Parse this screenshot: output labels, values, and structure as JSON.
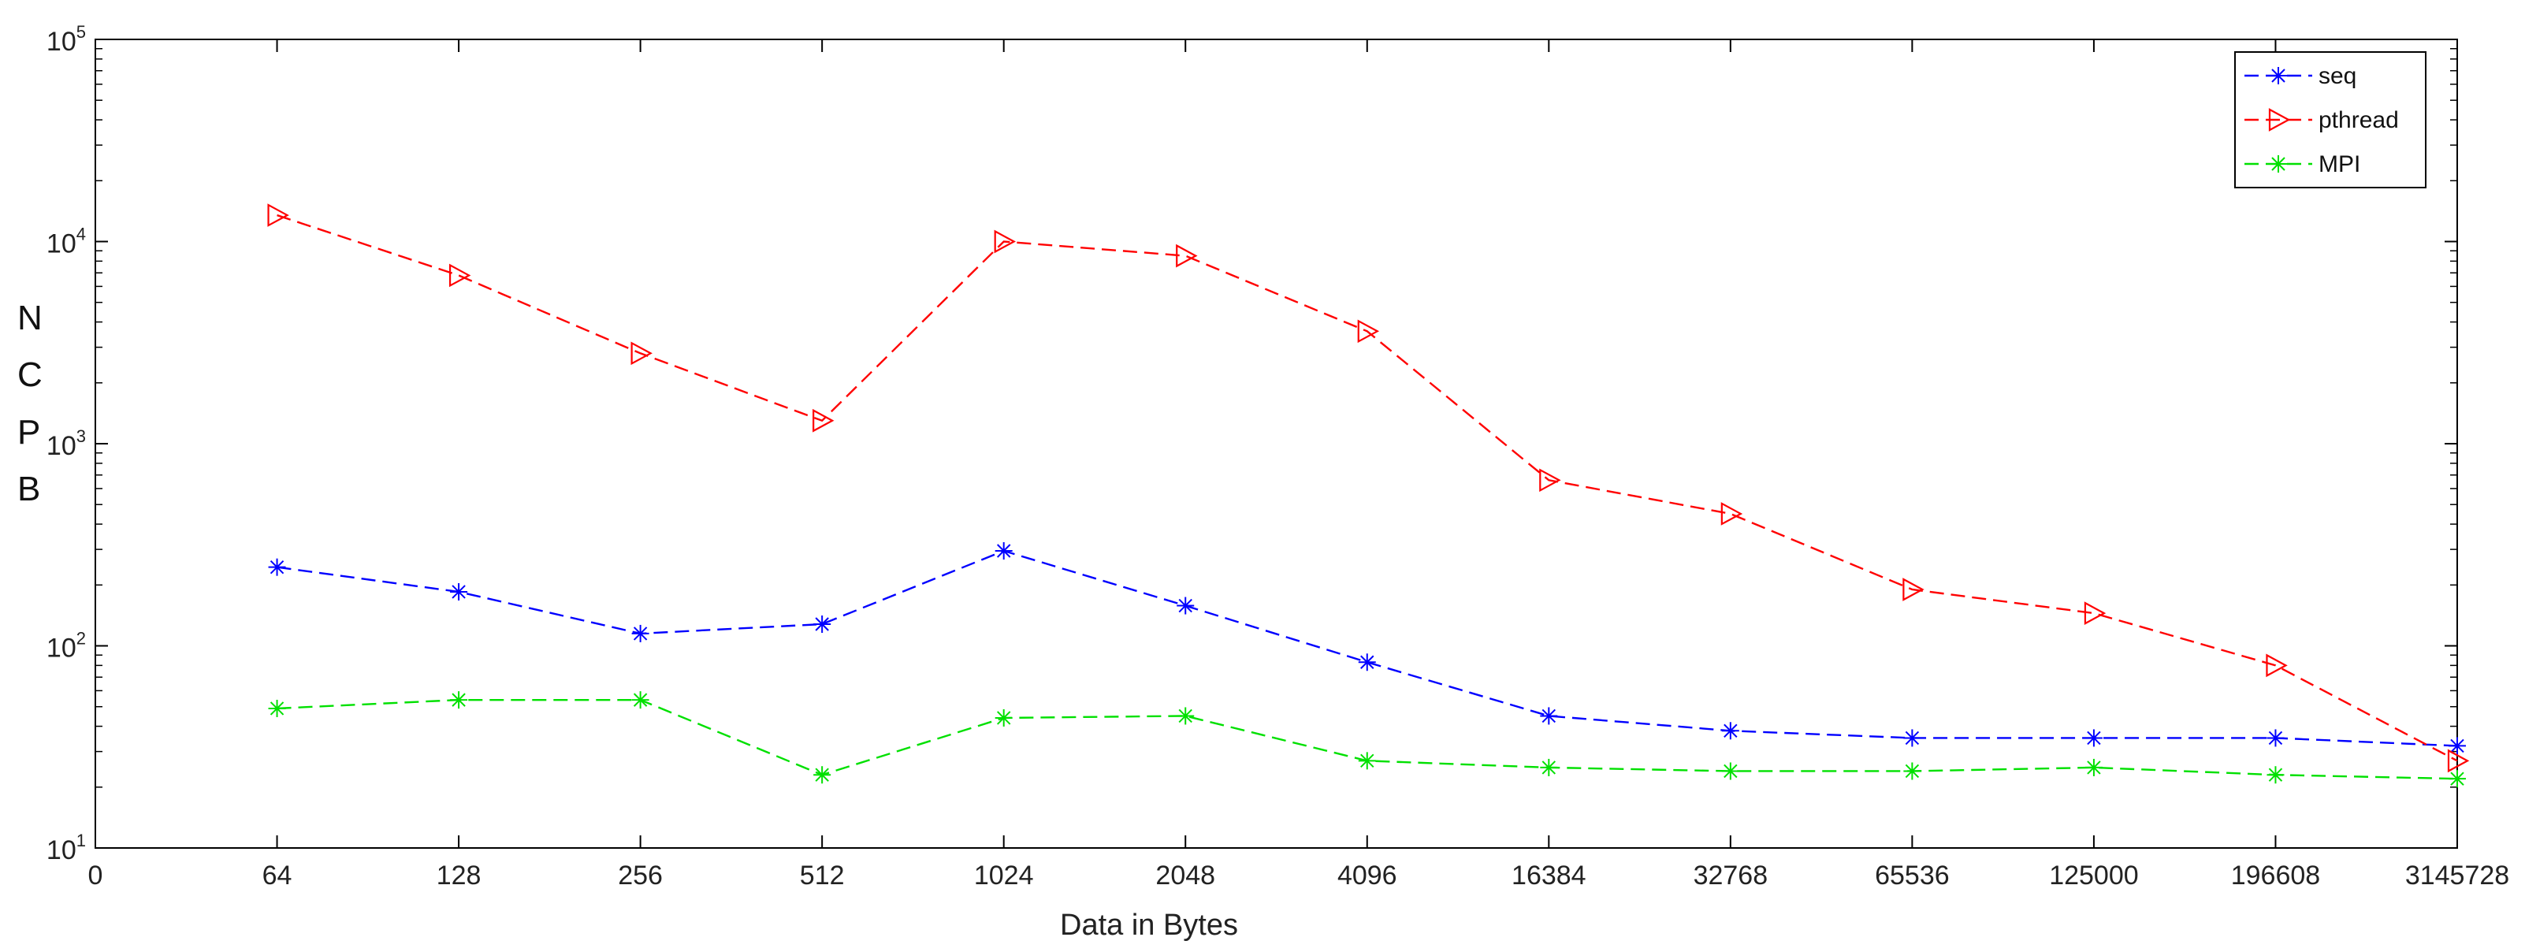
{
  "chart_data": {
    "type": "line",
    "xlabel": "Data in Bytes",
    "ylabel_letters": [
      "N",
      "C",
      "P",
      "B"
    ],
    "y_scale": "log",
    "ylim": [
      10,
      100000
    ],
    "y_ticks": [
      {
        "value": 10,
        "base": "10",
        "exp": "1"
      },
      {
        "value": 100,
        "base": "10",
        "exp": "2"
      },
      {
        "value": 1000,
        "base": "10",
        "exp": "3"
      },
      {
        "value": 10000,
        "base": "10",
        "exp": "4"
      },
      {
        "value": 100000,
        "base": "10",
        "exp": "5"
      }
    ],
    "x_tick_labels": [
      "0",
      "64",
      "128",
      "256",
      "512",
      "1024",
      "2048",
      "4096",
      "16384",
      "32768",
      "65536",
      "125000",
      "196608",
      "3145728"
    ],
    "categories": [
      "64",
      "128",
      "256",
      "512",
      "1024",
      "2048",
      "4096",
      "16384",
      "32768",
      "65536",
      "125000",
      "196608",
      "3145728"
    ],
    "series": [
      {
        "name": "seq",
        "color": "#0000ff",
        "marker": "asterisk",
        "values": [
          245,
          185,
          115,
          128,
          295,
          158,
          83,
          45,
          38,
          35,
          35,
          35,
          32
        ]
      },
      {
        "name": "pthread",
        "color": "#ff0000",
        "marker": "triangle-right",
        "values": [
          13500,
          6800,
          2800,
          1300,
          10000,
          8500,
          3600,
          660,
          450,
          190,
          145,
          80,
          27
        ]
      },
      {
        "name": "MPI",
        "color": "#00e000",
        "marker": "asterisk",
        "values": [
          49,
          54,
          54,
          23,
          44,
          45,
          27,
          25,
          24,
          24,
          25,
          23,
          22
        ]
      }
    ],
    "legend_position": "top-right",
    "grid": false
  }
}
